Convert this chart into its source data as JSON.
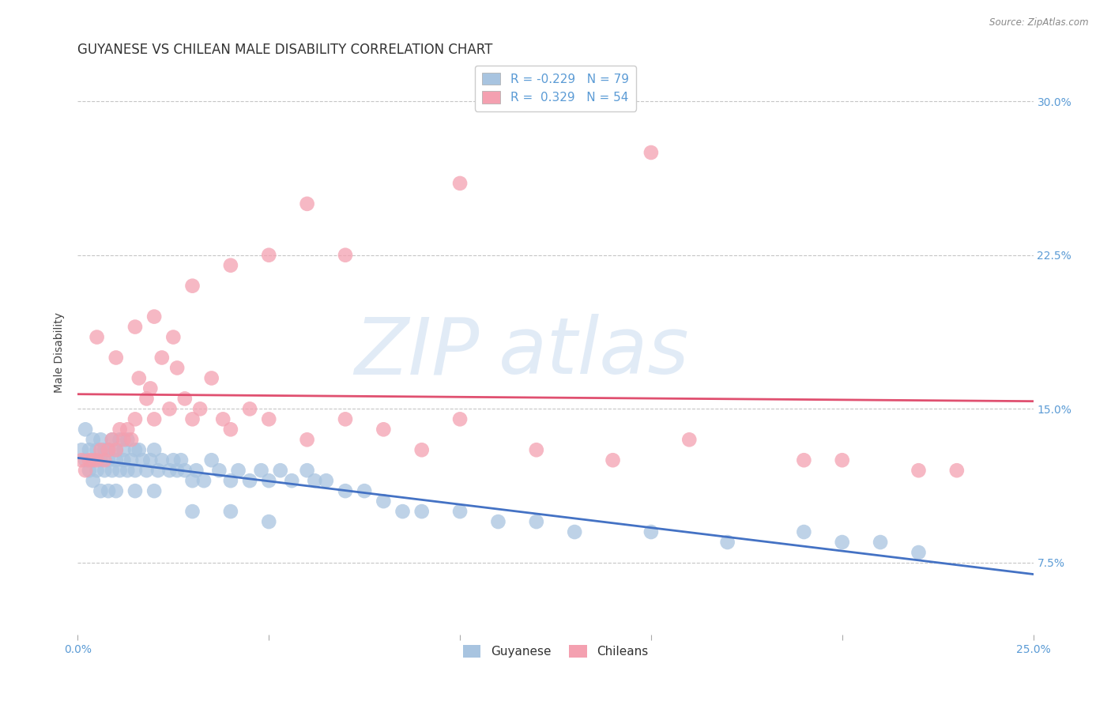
{
  "title": "GUYANESE VS CHILEAN MALE DISABILITY CORRELATION CHART",
  "source": "Source: ZipAtlas.com",
  "ylabel": "Male Disability",
  "watermark_zip": "ZIP",
  "watermark_atlas": "atlas",
  "x_min": 0.0,
  "x_max": 0.25,
  "y_min": 0.04,
  "y_max": 0.315,
  "x_ticks": [
    0.0,
    0.05,
    0.1,
    0.15,
    0.2,
    0.25
  ],
  "x_tick_labels": [
    "0.0%",
    "",
    "",
    "",
    "",
    "25.0%"
  ],
  "y_ticks_right": [
    0.075,
    0.15,
    0.225,
    0.3
  ],
  "y_tick_labels_right": [
    "7.5%",
    "15.0%",
    "22.5%",
    "30.0%"
  ],
  "guyanese_color": "#a8c4e0",
  "chilean_color": "#f4a0b0",
  "guyanese_line_color": "#4472c4",
  "chilean_line_color": "#e05070",
  "R_guyanese": -0.229,
  "N_guyanese": 79,
  "R_chilean": 0.329,
  "N_chilean": 54,
  "guyanese_x": [
    0.001,
    0.002,
    0.002,
    0.003,
    0.003,
    0.004,
    0.004,
    0.005,
    0.005,
    0.006,
    0.006,
    0.007,
    0.007,
    0.008,
    0.008,
    0.009,
    0.009,
    0.01,
    0.01,
    0.011,
    0.011,
    0.012,
    0.012,
    0.013,
    0.013,
    0.014,
    0.015,
    0.015,
    0.016,
    0.017,
    0.018,
    0.019,
    0.02,
    0.021,
    0.022,
    0.024,
    0.025,
    0.026,
    0.027,
    0.028,
    0.03,
    0.031,
    0.033,
    0.035,
    0.037,
    0.04,
    0.042,
    0.045,
    0.048,
    0.05,
    0.053,
    0.056,
    0.06,
    0.062,
    0.065,
    0.07,
    0.075,
    0.08,
    0.085,
    0.09,
    0.1,
    0.11,
    0.12,
    0.13,
    0.15,
    0.17,
    0.19,
    0.2,
    0.21,
    0.22,
    0.004,
    0.006,
    0.008,
    0.01,
    0.015,
    0.02,
    0.03,
    0.04,
    0.05
  ],
  "guyanese_y": [
    0.13,
    0.14,
    0.125,
    0.13,
    0.12,
    0.135,
    0.125,
    0.13,
    0.12,
    0.135,
    0.125,
    0.13,
    0.12,
    0.13,
    0.125,
    0.135,
    0.12,
    0.13,
    0.125,
    0.135,
    0.12,
    0.13,
    0.125,
    0.12,
    0.135,
    0.125,
    0.13,
    0.12,
    0.13,
    0.125,
    0.12,
    0.125,
    0.13,
    0.12,
    0.125,
    0.12,
    0.125,
    0.12,
    0.125,
    0.12,
    0.115,
    0.12,
    0.115,
    0.125,
    0.12,
    0.115,
    0.12,
    0.115,
    0.12,
    0.115,
    0.12,
    0.115,
    0.12,
    0.115,
    0.115,
    0.11,
    0.11,
    0.105,
    0.1,
    0.1,
    0.1,
    0.095,
    0.095,
    0.09,
    0.09,
    0.085,
    0.09,
    0.085,
    0.085,
    0.08,
    0.115,
    0.11,
    0.11,
    0.11,
    0.11,
    0.11,
    0.1,
    0.1,
    0.095
  ],
  "chilean_x": [
    0.001,
    0.002,
    0.003,
    0.004,
    0.005,
    0.006,
    0.007,
    0.008,
    0.009,
    0.01,
    0.011,
    0.012,
    0.013,
    0.014,
    0.015,
    0.016,
    0.018,
    0.019,
    0.02,
    0.022,
    0.024,
    0.026,
    0.028,
    0.03,
    0.032,
    0.035,
    0.038,
    0.04,
    0.045,
    0.05,
    0.06,
    0.07,
    0.08,
    0.09,
    0.1,
    0.12,
    0.14,
    0.16,
    0.19,
    0.005,
    0.01,
    0.015,
    0.02,
    0.025,
    0.03,
    0.04,
    0.05,
    0.06,
    0.07,
    0.1,
    0.15,
    0.2,
    0.22,
    0.23
  ],
  "chilean_y": [
    0.125,
    0.12,
    0.125,
    0.125,
    0.125,
    0.13,
    0.125,
    0.13,
    0.135,
    0.13,
    0.14,
    0.135,
    0.14,
    0.135,
    0.145,
    0.165,
    0.155,
    0.16,
    0.145,
    0.175,
    0.15,
    0.17,
    0.155,
    0.145,
    0.15,
    0.165,
    0.145,
    0.14,
    0.15,
    0.145,
    0.135,
    0.145,
    0.14,
    0.13,
    0.145,
    0.13,
    0.125,
    0.135,
    0.125,
    0.185,
    0.175,
    0.19,
    0.195,
    0.185,
    0.21,
    0.22,
    0.225,
    0.25,
    0.225,
    0.26,
    0.275,
    0.125,
    0.12,
    0.12
  ],
  "background_color": "#ffffff",
  "grid_color": "#c0c0c0",
  "title_fontsize": 12,
  "axis_label_fontsize": 10,
  "tick_fontsize": 10,
  "legend_fontsize": 11
}
